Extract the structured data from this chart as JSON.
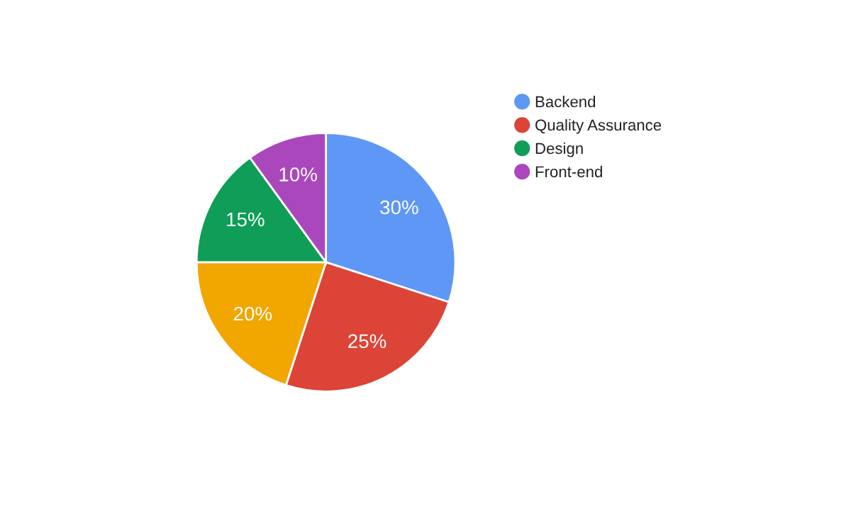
{
  "chart_data": {
    "type": "pie",
    "categories": [
      "Backend",
      "Quality Assurance",
      null,
      "Design",
      "Front-end"
    ],
    "values": [
      30,
      25,
      20,
      15,
      10
    ],
    "value_labels": [
      "30%",
      "25%",
      "20%",
      "15%",
      "10%"
    ],
    "colors": [
      "#5e97f6",
      "#db4437",
      "#f2a600",
      "#0f9d58",
      "#ab47bc"
    ],
    "legend": "right"
  }
}
